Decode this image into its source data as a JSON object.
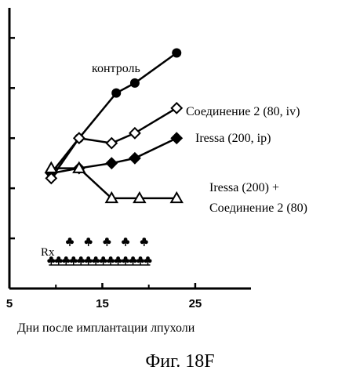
{
  "chart_data": {
    "type": "line",
    "xlabel": "Дни после имплантации лпухоли",
    "caption": "Фиг. 18F",
    "xlim": [
      5,
      31
    ],
    "ylim": [
      0,
      5.6
    ],
    "x_ticks": [
      5,
      15,
      25
    ],
    "y_ticks": [
      1,
      2,
      3,
      4,
      5
    ],
    "series": [
      {
        "name": "контроль",
        "marker": "circle-filled",
        "x": [
          9.5,
          12.5,
          16.5,
          18.5,
          23
        ],
        "y": [
          2.3,
          3.0,
          3.9,
          4.1,
          4.7
        ]
      },
      {
        "name": "Соединение 2 (80, iv)",
        "marker": "diamond-open",
        "x": [
          9.5,
          12.5,
          16,
          18.5,
          23
        ],
        "y": [
          2.2,
          3.0,
          2.9,
          3.1,
          3.6
        ]
      },
      {
        "name": "Iressa (200, ip)",
        "marker": "diamond-filled",
        "x": [
          9.5,
          12.5,
          16,
          18.5,
          23
        ],
        "y": [
          2.3,
          2.4,
          2.5,
          2.6,
          3.0
        ]
      },
      {
        "name": "Iressa (200) + Соединение 2 (80)",
        "marker": "triangle-open",
        "x": [
          9.5,
          12.5,
          16,
          19,
          23
        ],
        "y": [
          2.4,
          2.4,
          1.8,
          1.8,
          1.8
        ]
      }
    ],
    "dosing": {
      "label": "Rx",
      "row1_days": [
        11.5,
        13.5,
        15.5,
        17.5,
        19.5
      ],
      "row2_days": [
        9.5,
        10.3,
        11.1,
        11.9,
        12.7,
        13.5,
        14.3,
        15.1,
        15.9,
        16.7,
        17.5,
        18.3,
        19.1,
        19.9
      ]
    }
  }
}
